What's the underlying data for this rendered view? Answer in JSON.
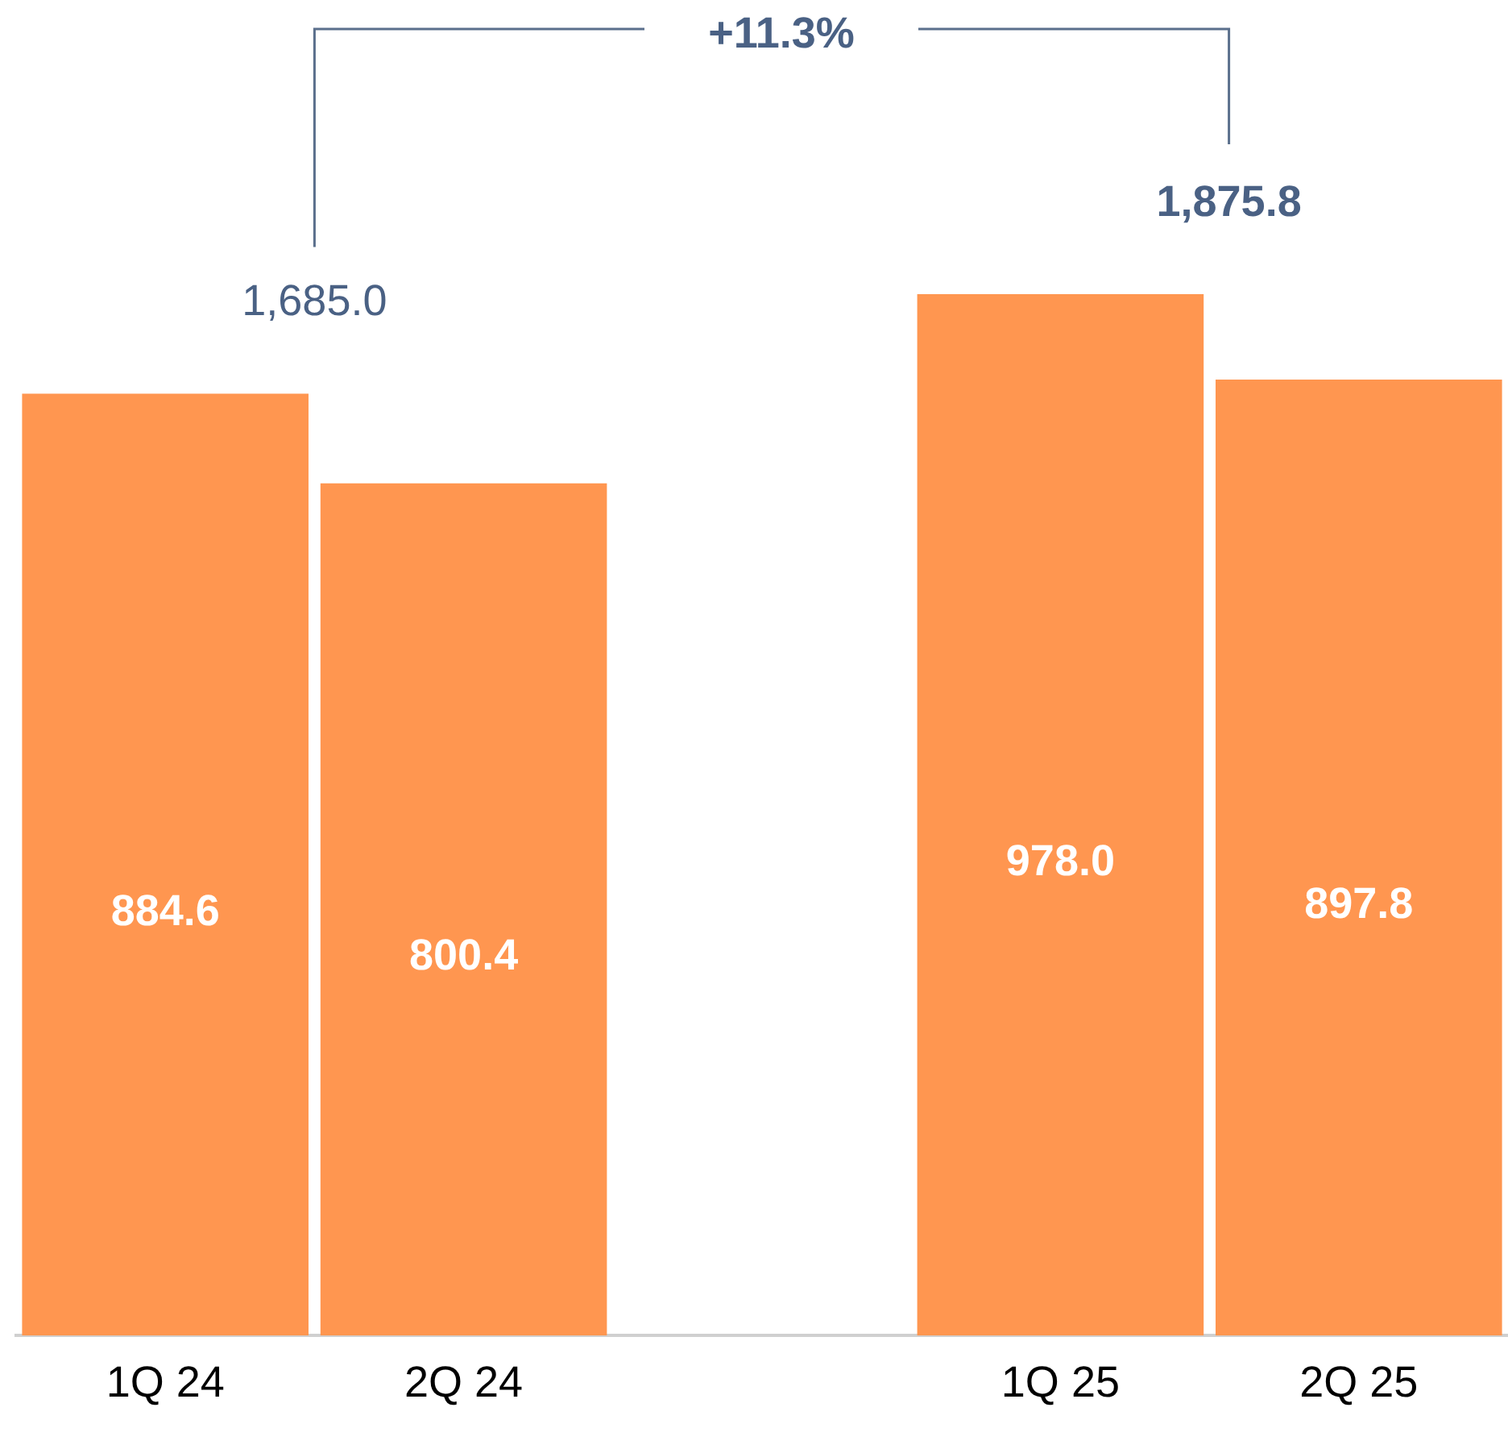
{
  "chart_data": {
    "type": "bar",
    "categories": [
      "1Q 24",
      "2Q 24",
      null,
      "1Q 25",
      "2Q 25"
    ],
    "values": [
      884.6,
      800.4,
      null,
      978.0,
      897.8
    ],
    "color": "#ff9650",
    "value_labels": [
      "884.6",
      "800.4",
      null,
      "978.0",
      "897.8"
    ],
    "tick_labels": "x",
    "grid": false,
    "legend": false,
    "annotations": [
      "1,685.0",
      "1,875.8",
      "+11.3%"
    ]
  }
}
